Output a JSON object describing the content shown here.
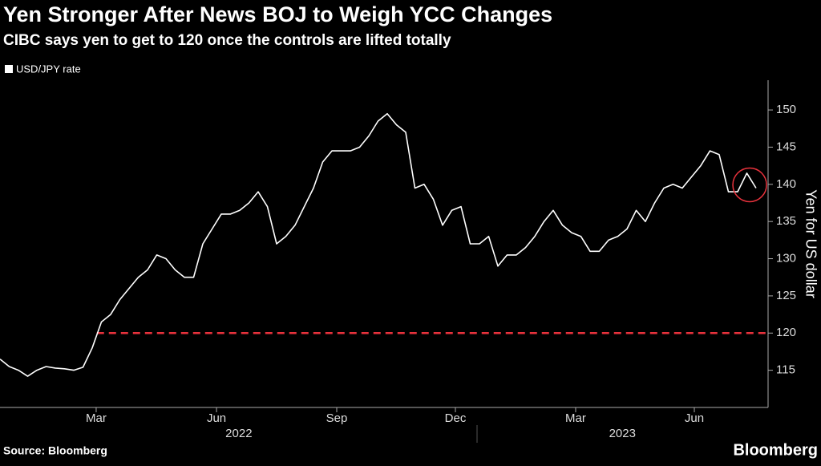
{
  "chart_data": {
    "type": "line",
    "title": "Yen Stronger After News BOJ to Weigh YCC Changes",
    "subtitle": "CIBC says yen to get to 120 once the controls are lifted totally",
    "y_label": "Yen for US dollar",
    "source": "Source: Bloomberg",
    "brand": "Bloomberg",
    "series": [
      {
        "name": "USD/JPY rate",
        "color": "#ffffff",
        "values": [
          116.5,
          115.5,
          115,
          114.2,
          115,
          115.5,
          115.3,
          115.2,
          115,
          115.4,
          118,
          121.5,
          122.5,
          124.5,
          126,
          127.5,
          128.5,
          130.5,
          130,
          128.5,
          127.5,
          127.5,
          132,
          134,
          136,
          136,
          136.5,
          137.5,
          139,
          137,
          132,
          133,
          134.5,
          137,
          139.5,
          143,
          144.5,
          144.5,
          144.5,
          145,
          146.5,
          148.5,
          149.5,
          148,
          147,
          139.5,
          140,
          138,
          134.5,
          136.5,
          137,
          132,
          132,
          133,
          129,
          130.5,
          130.5,
          131.5,
          133,
          135,
          136.5,
          134.5,
          133.5,
          133,
          131,
          131,
          132.5,
          133,
          134,
          136.5,
          135,
          137.5,
          139.5,
          140,
          139.5,
          141,
          142.5,
          144.5,
          144,
          139,
          139,
          141.5,
          139.5
        ]
      }
    ],
    "reference_line": {
      "value": 120,
      "color": "#e8323c"
    },
    "xlim": [
      0,
      83.3
    ],
    "xticks": [
      {
        "value": 10.43,
        "label": "Mar"
      },
      {
        "value": 23.48,
        "label": "Jun"
      },
      {
        "value": 36.52,
        "label": "Sep"
      },
      {
        "value": 49.39,
        "label": "Dec"
      },
      {
        "value": 62.43,
        "label": "Mar"
      },
      {
        "value": 75.3,
        "label": "Jun"
      }
    ],
    "year_labels": [
      {
        "value": 25.9,
        "label": "2022"
      },
      {
        "value": 67.5,
        "label": "2023"
      }
    ],
    "ylim": [
      110,
      154
    ],
    "yticks": [
      115,
      120,
      125,
      130,
      135,
      140,
      145,
      150
    ],
    "grid": false
  }
}
